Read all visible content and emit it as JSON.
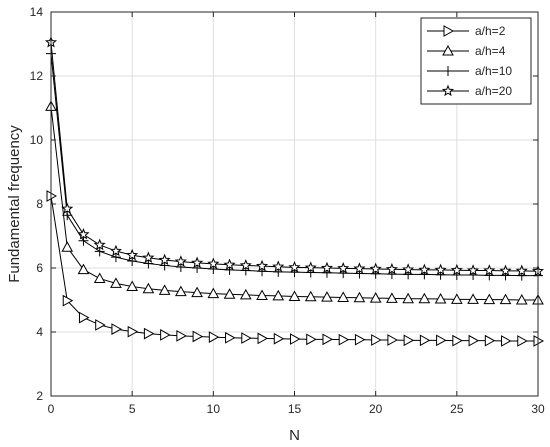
{
  "chart_data": {
    "type": "line",
    "xlabel": "N",
    "ylabel": "Fundamental frequency",
    "xlim": [
      0,
      30
    ],
    "ylim": [
      2,
      14
    ],
    "xticks": [
      0,
      5,
      10,
      15,
      20,
      25,
      30
    ],
    "yticks": [
      2,
      4,
      6,
      8,
      10,
      12,
      14
    ],
    "grid": true,
    "legend_position": "top-right",
    "x": [
      0,
      1,
      2,
      3,
      4,
      5,
      6,
      7,
      8,
      9,
      10,
      11,
      12,
      13,
      14,
      15,
      16,
      17,
      18,
      19,
      20,
      21,
      22,
      23,
      24,
      25,
      26,
      27,
      28,
      29,
      30
    ],
    "series": [
      {
        "name": "a/h=2",
        "marker": "triangle-right",
        "values": [
          8.25,
          4.98,
          4.45,
          4.22,
          4.09,
          4.01,
          3.95,
          3.91,
          3.88,
          3.86,
          3.84,
          3.82,
          3.81,
          3.8,
          3.79,
          3.78,
          3.77,
          3.77,
          3.76,
          3.76,
          3.75,
          3.75,
          3.74,
          3.74,
          3.74,
          3.73,
          3.73,
          3.73,
          3.72,
          3.72,
          3.72
        ]
      },
      {
        "name": "a/h=4",
        "marker": "triangle-up",
        "values": [
          11.05,
          6.65,
          5.95,
          5.67,
          5.52,
          5.42,
          5.35,
          5.3,
          5.26,
          5.23,
          5.2,
          5.18,
          5.16,
          5.14,
          5.13,
          5.11,
          5.1,
          5.09,
          5.08,
          5.07,
          5.06,
          5.05,
          5.04,
          5.04,
          5.03,
          5.02,
          5.02,
          5.01,
          5.01,
          5.0,
          5.0
        ]
      },
      {
        "name": "a/h=10",
        "marker": "plus",
        "values": [
          12.7,
          7.65,
          6.85,
          6.52,
          6.34,
          6.22,
          6.14,
          6.08,
          6.03,
          6.0,
          5.97,
          5.94,
          5.92,
          5.9,
          5.88,
          5.87,
          5.86,
          5.85,
          5.84,
          5.83,
          5.82,
          5.81,
          5.8,
          5.8,
          5.79,
          5.78,
          5.78,
          5.77,
          5.77,
          5.76,
          5.76
        ]
      },
      {
        "name": "a/h=20",
        "marker": "star",
        "values": [
          13.05,
          7.85,
          7.05,
          6.72,
          6.53,
          6.4,
          6.32,
          6.25,
          6.2,
          6.16,
          6.13,
          6.1,
          6.08,
          6.06,
          6.04,
          6.02,
          6.01,
          6.0,
          5.99,
          5.98,
          5.97,
          5.96,
          5.95,
          5.94,
          5.94,
          5.93,
          5.92,
          5.92,
          5.91,
          5.91,
          5.9
        ]
      }
    ]
  },
  "colors": {
    "line": "#000000",
    "grid": "#dfdfdf",
    "axis": "#262626",
    "background": "#ffffff"
  }
}
